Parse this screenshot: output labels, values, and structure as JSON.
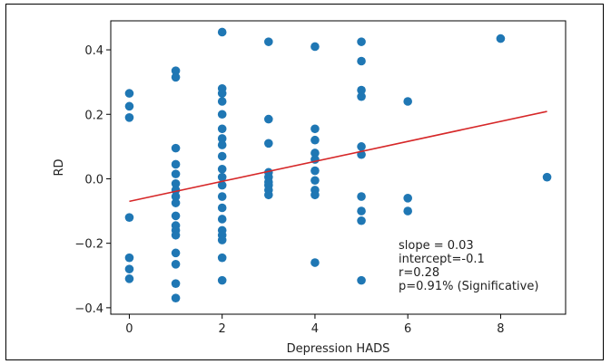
{
  "chart_data": {
    "type": "scatter",
    "xlabel": "Depression HADS",
    "ylabel": "RD",
    "xlim": [
      -0.4,
      9.4
    ],
    "ylim": [
      -0.42,
      0.49
    ],
    "x_ticks": [
      0,
      2,
      4,
      6,
      8
    ],
    "y_ticks": [
      -0.4,
      -0.2,
      0.0,
      0.2,
      0.4
    ],
    "x_tick_labels": [
      "0",
      "2",
      "4",
      "6",
      "8"
    ],
    "y_tick_labels": [
      "−0.4",
      "−0.2",
      "0.0",
      "0.2",
      "0.4"
    ],
    "grid": false,
    "colors": {
      "points": "#1f77b4",
      "fit_line": "#d62728"
    },
    "points": [
      {
        "x": 0,
        "y": 0.265
      },
      {
        "x": 0,
        "y": 0.225
      },
      {
        "x": 0,
        "y": 0.19
      },
      {
        "x": 0,
        "y": -0.12
      },
      {
        "x": 0,
        "y": -0.245
      },
      {
        "x": 0,
        "y": -0.28
      },
      {
        "x": 0,
        "y": -0.31
      },
      {
        "x": 1,
        "y": 0.335
      },
      {
        "x": 1,
        "y": 0.315
      },
      {
        "x": 1,
        "y": 0.095
      },
      {
        "x": 1,
        "y": 0.045
      },
      {
        "x": 1,
        "y": 0.015
      },
      {
        "x": 1,
        "y": -0.015
      },
      {
        "x": 1,
        "y": -0.035
      },
      {
        "x": 1,
        "y": -0.055
      },
      {
        "x": 1,
        "y": -0.075
      },
      {
        "x": 1,
        "y": -0.115
      },
      {
        "x": 1,
        "y": -0.145
      },
      {
        "x": 1,
        "y": -0.16
      },
      {
        "x": 1,
        "y": -0.175
      },
      {
        "x": 1,
        "y": -0.23
      },
      {
        "x": 1,
        "y": -0.265
      },
      {
        "x": 1,
        "y": -0.325
      },
      {
        "x": 1,
        "y": -0.37
      },
      {
        "x": 2,
        "y": 0.455
      },
      {
        "x": 2,
        "y": 0.28
      },
      {
        "x": 2,
        "y": 0.265
      },
      {
        "x": 2,
        "y": 0.24
      },
      {
        "x": 2,
        "y": 0.2
      },
      {
        "x": 2,
        "y": 0.155
      },
      {
        "x": 2,
        "y": 0.125
      },
      {
        "x": 2,
        "y": 0.105
      },
      {
        "x": 2,
        "y": 0.07
      },
      {
        "x": 2,
        "y": 0.03
      },
      {
        "x": 2,
        "y": 0.005
      },
      {
        "x": 2,
        "y": -0.02
      },
      {
        "x": 2,
        "y": -0.055
      },
      {
        "x": 2,
        "y": -0.09
      },
      {
        "x": 2,
        "y": -0.125
      },
      {
        "x": 2,
        "y": -0.16
      },
      {
        "x": 2,
        "y": -0.175
      },
      {
        "x": 2,
        "y": -0.19
      },
      {
        "x": 2,
        "y": -0.245
      },
      {
        "x": 2,
        "y": -0.315
      },
      {
        "x": 3,
        "y": 0.425
      },
      {
        "x": 3,
        "y": 0.185
      },
      {
        "x": 3,
        "y": 0.11
      },
      {
        "x": 3,
        "y": 0.02
      },
      {
        "x": 3,
        "y": 0.005
      },
      {
        "x": 3,
        "y": -0.01
      },
      {
        "x": 3,
        "y": -0.02
      },
      {
        "x": 3,
        "y": -0.035
      },
      {
        "x": 3,
        "y": -0.05
      },
      {
        "x": 4,
        "y": 0.41
      },
      {
        "x": 4,
        "y": 0.155
      },
      {
        "x": 4,
        "y": 0.12
      },
      {
        "x": 4,
        "y": 0.08
      },
      {
        "x": 4,
        "y": 0.06
      },
      {
        "x": 4,
        "y": 0.025
      },
      {
        "x": 4,
        "y": -0.005
      },
      {
        "x": 4,
        "y": -0.035
      },
      {
        "x": 4,
        "y": -0.05
      },
      {
        "x": 4,
        "y": -0.26
      },
      {
        "x": 5,
        "y": 0.425
      },
      {
        "x": 5,
        "y": 0.365
      },
      {
        "x": 5,
        "y": 0.275
      },
      {
        "x": 5,
        "y": 0.255
      },
      {
        "x": 5,
        "y": 0.1
      },
      {
        "x": 5,
        "y": 0.075
      },
      {
        "x": 5,
        "y": -0.055
      },
      {
        "x": 5,
        "y": -0.1
      },
      {
        "x": 5,
        "y": -0.13
      },
      {
        "x": 5,
        "y": -0.315
      },
      {
        "x": 6,
        "y": 0.24
      },
      {
        "x": 6,
        "y": -0.06
      },
      {
        "x": 6,
        "y": -0.1
      },
      {
        "x": 8,
        "y": 0.435
      },
      {
        "x": 9,
        "y": 0.005
      }
    ],
    "fit_line": {
      "slope": 0.031,
      "intercept": -0.07,
      "x_range": [
        0,
        9
      ]
    },
    "annotations": [
      "slope = 0.03",
      "intercept=-0.1",
      "r=0.28",
      "p=0.91% (Significative)"
    ]
  }
}
